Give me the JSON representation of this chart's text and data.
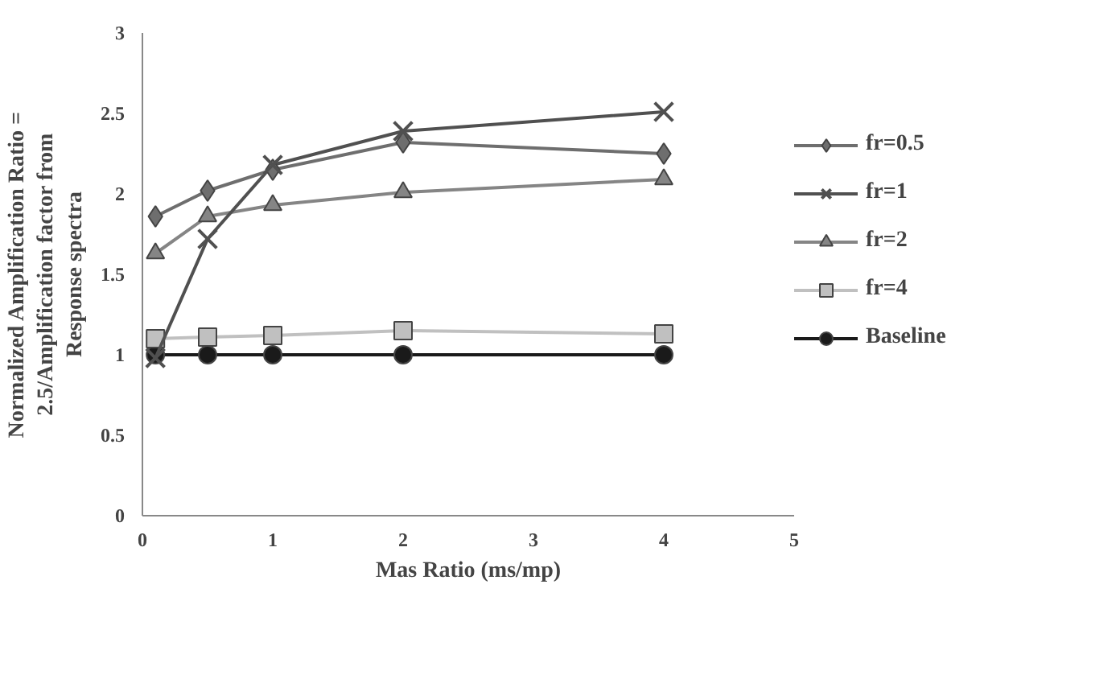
{
  "chart_data": {
    "type": "line",
    "xlabel": "Mas Ratio (ms/mp)",
    "ylabel": "Normalized Amplification Ratio =\n2.5/Amplification factor from\nResponse spectra",
    "x": [
      0.1,
      0.5,
      1,
      2,
      4
    ],
    "xlim": [
      0,
      5
    ],
    "xticks": [
      0,
      1,
      2,
      3,
      4,
      5
    ],
    "ylim": [
      0,
      3
    ],
    "yticks": [
      0,
      0.5,
      1,
      1.5,
      2,
      2.5,
      3
    ],
    "grid": false,
    "legend": "right",
    "series": [
      {
        "name": "fr=0.5",
        "color": "#6e6e6e",
        "marker": "diamond",
        "values": [
          1.86,
          2.02,
          2.15,
          2.32,
          2.25
        ]
      },
      {
        "name": "fr=1",
        "color": "#505050",
        "marker": "cross",
        "values": [
          0.98,
          1.72,
          2.18,
          2.39,
          2.51
        ]
      },
      {
        "name": "fr=2",
        "color": "#858585",
        "marker": "triangle",
        "values": [
          1.63,
          1.86,
          1.93,
          2.01,
          2.09
        ]
      },
      {
        "name": "fr=4",
        "color": "#c0c0c0",
        "marker": "square",
        "values": [
          1.1,
          1.11,
          1.12,
          1.15,
          1.13
        ]
      },
      {
        "name": "Baseline",
        "color": "#1a1a1a",
        "marker": "circle",
        "values": [
          1,
          1,
          1,
          1,
          1
        ]
      }
    ]
  }
}
